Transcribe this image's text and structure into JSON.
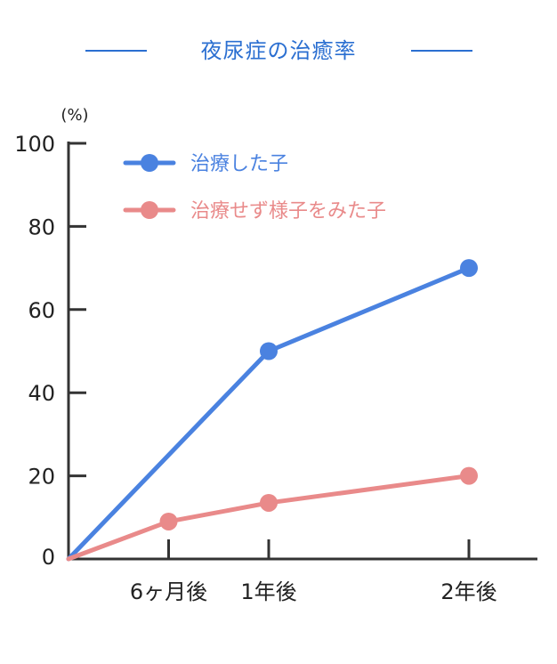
{
  "colors": {
    "title": "#2b6fd1",
    "axis": "#333333",
    "treated": "#4a82e0",
    "untreated": "#e98a8a"
  },
  "chart_data": {
    "type": "line",
    "title": "夜尿症の治癒率",
    "ylabel": "(%)",
    "xlabel": "",
    "ylim": [
      0,
      100
    ],
    "y_ticks": [
      "0",
      "20",
      "40",
      "60",
      "80",
      "100"
    ],
    "x_ticks": [
      {
        "label": "6ヶ月後",
        "months": 6
      },
      {
        "label": "1年後",
        "months": 12
      },
      {
        "label": "2年後",
        "months": 24
      }
    ],
    "xlim_months": [
      0,
      28
    ],
    "legend_position": "top-left",
    "grid": false,
    "series": [
      {
        "name": "治療した子",
        "color_key": "treated",
        "points": [
          {
            "months": 0,
            "value": 0
          },
          {
            "months": 12,
            "value": 50
          },
          {
            "months": 24,
            "value": 70
          }
        ]
      },
      {
        "name": "治療せず様子をみた子",
        "color_key": "untreated",
        "points": [
          {
            "months": 0,
            "value": 0
          },
          {
            "months": 6,
            "value": 9
          },
          {
            "months": 12,
            "value": 13.5
          },
          {
            "months": 24,
            "value": 20
          }
        ]
      }
    ]
  }
}
